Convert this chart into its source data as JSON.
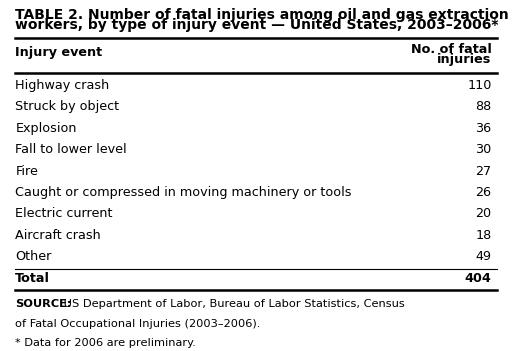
{
  "title_line1": "TABLE 2. Number of fatal injuries among oil and gas extraction",
  "title_line2": "workers, by type of injury event — United States, 2003–2006*",
  "col1_header": "Injury event",
  "col2_header_line1": "No. of fatal",
  "col2_header_line2": "injuries",
  "rows": [
    [
      "Highway crash",
      "110"
    ],
    [
      "Struck by object",
      "88"
    ],
    [
      "Explosion",
      "36"
    ],
    [
      "Fall to lower level",
      "30"
    ],
    [
      "Fire",
      "27"
    ],
    [
      "Caught or compressed in moving machinery or tools",
      "26"
    ],
    [
      "Electric current",
      "20"
    ],
    [
      "Aircraft crash",
      "18"
    ],
    [
      "Other",
      "49"
    ]
  ],
  "total_label": "Total",
  "total_value": "404",
  "source_bold": "SOURCE:",
  "source_rest": " US Department of Labor, Bureau of Labor Statistics, Census",
  "source_line2": "of Fatal Occupational Injuries (2003–2006).",
  "source_line3": "* Data for 2006 are preliminary.",
  "bg_color": "#ffffff",
  "text_color": "#000000",
  "title_fontsize": 10.0,
  "header_fontsize": 9.2,
  "row_fontsize": 9.2,
  "source_fontsize": 8.2
}
